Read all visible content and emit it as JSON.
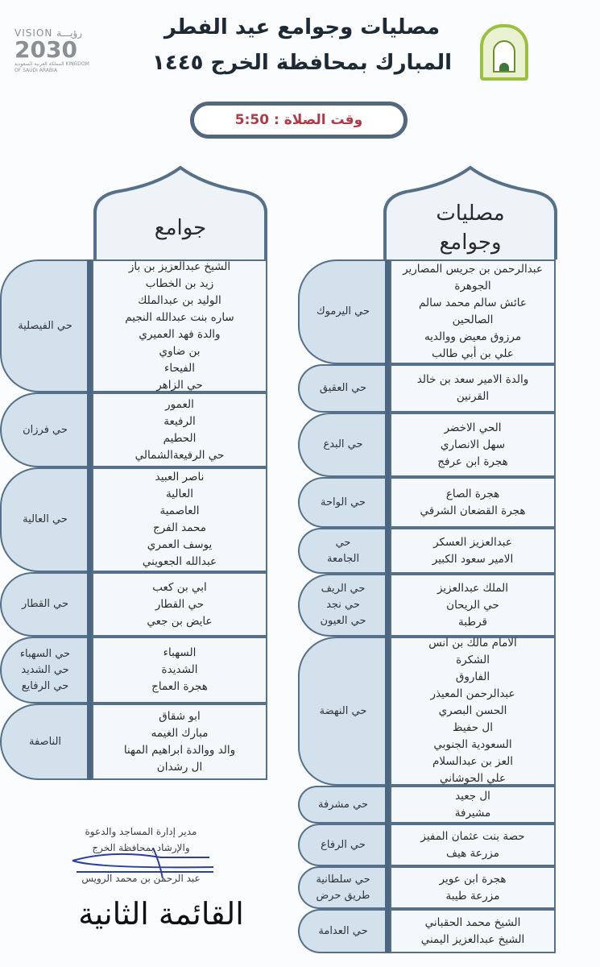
{
  "header": {
    "title_line1": "مصليات وجوامع عيد الفطر",
    "title_line2": "المبارك بمحافظة الخرج ١٤٤٥",
    "vision_logo": {
      "line1": "VISION رؤيـــة",
      "line2": "2030",
      "line3": "المملكة العربية السعودية KINGDOM OF SAUDI ARABIA"
    },
    "ministry_logo": "ministry-of-islamic-affairs-emblem"
  },
  "prayer_time": "وقت الصلاة : 5:50",
  "colors": {
    "frame": "#567089",
    "district_bg": "#d3e1ec",
    "names_bg": "#f4f8fb",
    "time_text": "#b03a48"
  },
  "right_table": {
    "header": [
      "مصليات",
      "وجوامع"
    ],
    "rows": [
      {
        "district": [
          "حي اليرموك"
        ],
        "names": [
          "عبدالرحمن بن جريس المصارير",
          "الجوهرة",
          "عائش سالم محمد سالم",
          "الصالحين",
          "مرزوق معيض ووالديه",
          "علي بن أبي طالب"
        ]
      },
      {
        "district": [
          "حي العقيق"
        ],
        "names": [
          "والدة الامير سعد بن خالد",
          "القرنين"
        ]
      },
      {
        "district": [
          "حي البدع"
        ],
        "names": [
          "الحي الاخضر",
          "سهل الانصاري",
          "هجرة ابن عرفج"
        ]
      },
      {
        "district": [
          "حي الواحة"
        ],
        "names": [
          "هجرة الصاع",
          "هجرة القضعان الشرقي"
        ]
      },
      {
        "district": [
          "حي",
          "الجامعة"
        ],
        "names": [
          "عبدالعزيز العسكر",
          "الامير سعود الكبير"
        ]
      },
      {
        "district": [
          "حي الريف",
          "حي نجد",
          "حي العيون"
        ],
        "names": [
          "الملك عبدالعزيز",
          "حي الريحان",
          "قرطبة"
        ]
      },
      {
        "district": [
          "حي النهضة"
        ],
        "names": [
          "الامام مالك بن انس",
          "الشكرة",
          "الفاروق",
          "عبدالرحمن المعيذر",
          "الحسن البصري",
          "ال حفيظ",
          "السعودية الجنوبي",
          "العز بن عبدالسلام",
          "علي الحوشاني"
        ]
      },
      {
        "district": [
          "حي مشرفة"
        ],
        "names": [
          "ال جعيد",
          "مشيرفة"
        ]
      },
      {
        "district": [
          "حي الرفاع"
        ],
        "names": [
          "حصة بنت عثمان المفيز",
          "مزرعة هيف"
        ]
      },
      {
        "district": [
          "حي سلطانية",
          "طريق حرض"
        ],
        "names": [
          "هجرة ابن عوير",
          "مزرعة طيبة"
        ]
      },
      {
        "district": [
          "حي العدامة"
        ],
        "names": [
          "الشيخ محمد الحقباني",
          "الشيخ عبدالعزيز اليمني"
        ]
      }
    ]
  },
  "left_table": {
    "header": [
      "جوامع"
    ],
    "rows": [
      {
        "district": [
          "حي الفيصلية"
        ],
        "names": [
          "الشيخ عبدالعزيز بن باز",
          "زيد بن الخطاب",
          "الوليد بن عبدالملك",
          "ساره بنت عبدالله النجيم",
          "والدة فهد العميري",
          "بن ضاوي",
          "الفيحاء",
          "حي الزاهر"
        ]
      },
      {
        "district": [
          "حي فرزان"
        ],
        "names": [
          "العمور",
          "الرفيعة",
          "الحطيم",
          "حي الرفيعةالشمالي"
        ]
      },
      {
        "district": [
          "حي العالية"
        ],
        "names": [
          "ناصر العبيد",
          "العالية",
          "العاصمية",
          "محمد الفرج",
          "يوسف العمري",
          "عبدالله الجعويني"
        ]
      },
      {
        "district": [
          "حي القطار"
        ],
        "names": [
          "ابي بن كعب",
          "حي القطار",
          "عايض بن جعي"
        ]
      },
      {
        "district": [
          "حي السهباء",
          "حي الشديد",
          "حي الرفايع"
        ],
        "names": [
          "السهباء",
          "الشديدة",
          "هجرة العماج"
        ]
      },
      {
        "district": [
          "الناصفة"
        ],
        "names": [
          "ابو شقاق",
          "مبارك الغيمه",
          "والد ووالدة ابراهيم المهنا",
          "ال رشدان"
        ]
      }
    ]
  },
  "signature": {
    "line1": "مدير إدارة المساجد والدعوة",
    "line2": "والإرشاد بمحافظة الخرج",
    "name": "عبد الرحمن بن محمد الرويس"
  },
  "list_label": "القائمة الثانية"
}
